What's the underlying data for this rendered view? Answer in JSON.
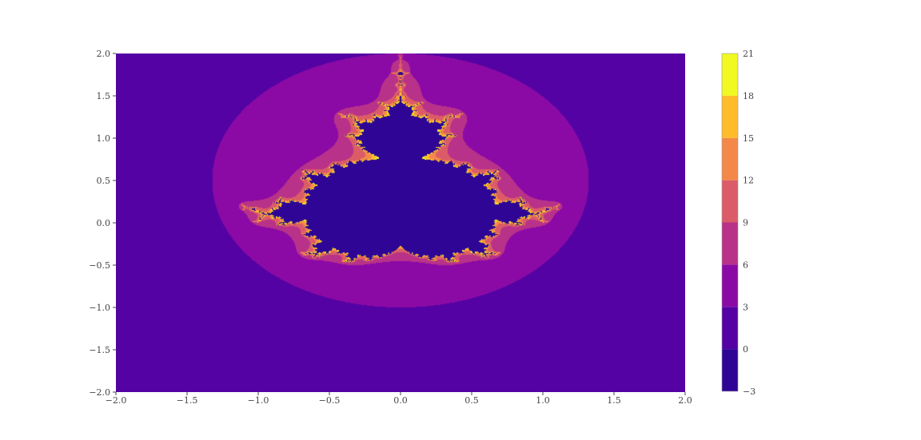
{
  "chart_data": {
    "type": "heatmap",
    "subtype": "filled-contour",
    "title": "",
    "xlabel": "",
    "ylabel": "",
    "xlim": [
      -2.0,
      2.0
    ],
    "ylim": [
      -2.0,
      2.0
    ],
    "x_ticks": [
      "−2.0",
      "−1.5",
      "−1.0",
      "−0.5",
      "0.0",
      "0.5",
      "1.0",
      "1.5",
      "2.0"
    ],
    "x_tick_values": [
      -2.0,
      -1.5,
      -1.0,
      -0.5,
      0.0,
      0.5,
      1.0,
      1.5,
      2.0
    ],
    "y_ticks": [
      "2.0",
      "1.5",
      "1.0",
      "0.5",
      "0.0",
      "−0.5",
      "−1.0",
      "−1.5",
      "−2.0"
    ],
    "y_tick_values": [
      2.0,
      1.5,
      1.0,
      0.5,
      0.0,
      -0.5,
      -1.0,
      -1.5,
      -2.0
    ],
    "grid": false,
    "colorbar": {
      "placement": "right",
      "levels": [
        -3,
        0,
        3,
        6,
        9,
        12,
        15,
        18,
        21
      ],
      "tick_labels": [
        "21",
        "18",
        "15",
        "12",
        "9",
        "6",
        "3",
        "0",
        "−3"
      ],
      "colors": [
        "#2f0596",
        "#5402a3",
        "#8b0aa5",
        "#b83289",
        "#db5c68",
        "#f48849",
        "#febc2a",
        "#f0f921"
      ]
    },
    "field": {
      "description_of_values": "escape iteration count of z -> z^2 + c with c = (x, y) rotated so the main cardioid points down",
      "max_iterations": 20,
      "escape_radius": 2.0,
      "inside_value": -1
    }
  }
}
